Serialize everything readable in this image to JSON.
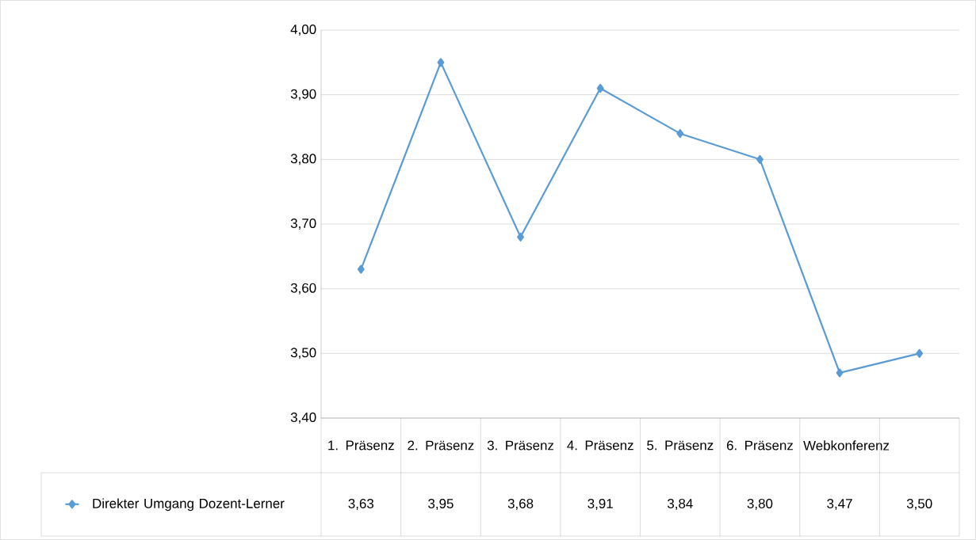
{
  "chart_data": {
    "type": "line",
    "categories": [
      "1. Präsenz",
      "2. Präsenz",
      "3. Präsenz",
      "4. Präsenz",
      "5. Präsenz",
      "6. Präsenz",
      "Webkonferenz",
      null
    ],
    "series": [
      {
        "name": "Direkter Umgang Dozent-Lerner",
        "color": "#5b9bd5",
        "values": [
          3.63,
          3.95,
          3.68,
          3.91,
          3.84,
          3.8,
          3.47,
          3.5
        ],
        "value_labels": [
          "3,63",
          "3,95",
          "3,68",
          "3,91",
          "3,84",
          "3,80",
          "3,47",
          "3,50"
        ]
      }
    ],
    "ylim": [
      3.4,
      4.0
    ],
    "yticks": [
      {
        "value": 3.4,
        "label": "3,40"
      },
      {
        "value": 3.5,
        "label": "3,50"
      },
      {
        "value": 3.6,
        "label": "3,60"
      },
      {
        "value": 3.7,
        "label": "3,70"
      },
      {
        "value": 3.8,
        "label": "3,80"
      },
      {
        "value": 3.9,
        "label": "3,90"
      },
      {
        "value": 4.0,
        "label": "4,00"
      }
    ],
    "grid": "y",
    "legend": "bottom left",
    "marker": "diamond",
    "line_style": "solid"
  }
}
